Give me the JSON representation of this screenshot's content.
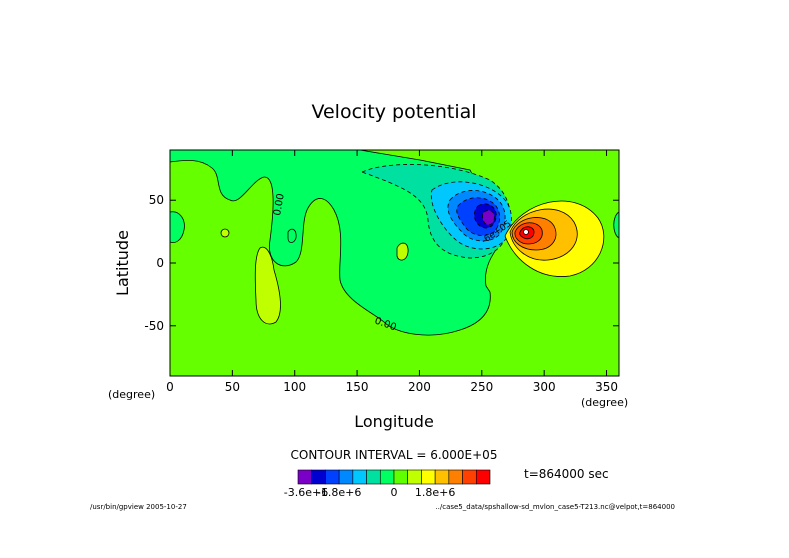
{
  "chart_data": {
    "type": "heatmap",
    "title": "Velocity potential",
    "xlabel": "Longitude",
    "ylabel": "Latitude",
    "x_unit": "(degree)",
    "y_unit": "(degree)",
    "xlim": [
      0,
      360
    ],
    "ylim": [
      -90,
      90
    ],
    "x_ticks": [
      0,
      50,
      100,
      150,
      200,
      250,
      300,
      350
    ],
    "y_ticks": [
      -50,
      0,
      50
    ],
    "grid": false,
    "contour_interval_text": "CONTOUR INTERVAL = 6.000E+05",
    "contour_labels": [
      "0.00",
      "0.00",
      "-6e+05"
    ],
    "time_text": "t=864000 sec",
    "colorbar": {
      "colors": [
        "#7a00c8",
        "#0000d0",
        "#0040ff",
        "#0088ff",
        "#00c8ff",
        "#00e0a0",
        "#00ff60",
        "#60ff00",
        "#c0ff00",
        "#ffff00",
        "#ffc000",
        "#ff8000",
        "#ff4000",
        "#ff0000"
      ],
      "tick_labels": [
        "-3.6e+6",
        "-1.8e+6",
        "0",
        "1.8e+6"
      ]
    },
    "features": [
      {
        "name": "negative center",
        "lon": 256,
        "lat": 37
      },
      {
        "name": "positive center",
        "lon": 284,
        "lat": 24
      }
    ]
  },
  "footer": {
    "left": "/usr/bin/gpview  2005-10-27",
    "right": "../case5_data/spshallow-sd_mvlon_case5-T213.nc@velpot,t=864000"
  }
}
